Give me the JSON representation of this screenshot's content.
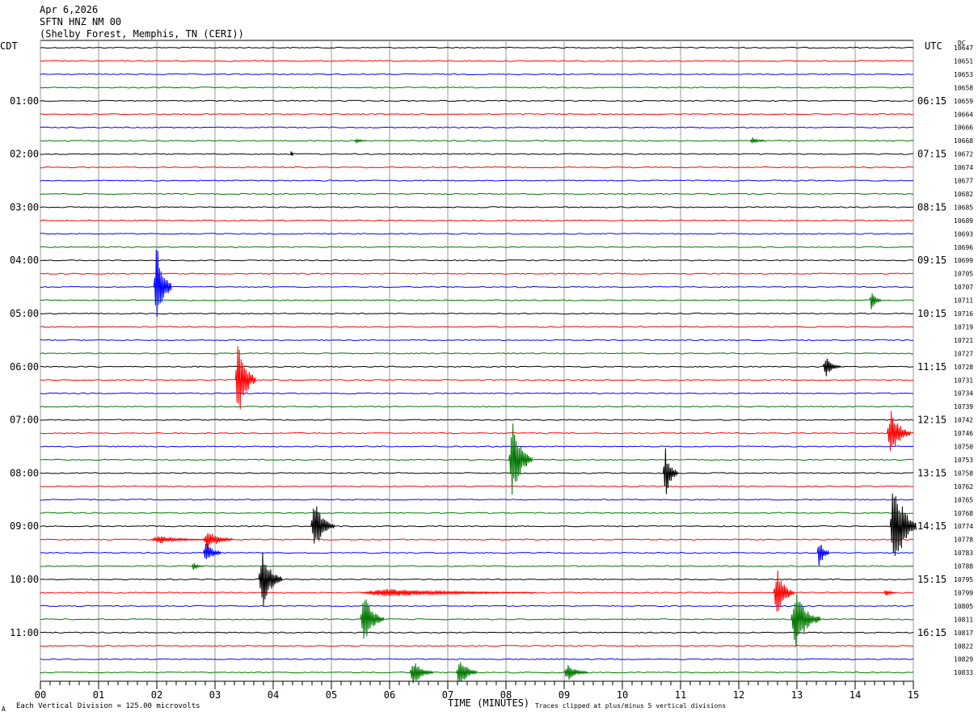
{
  "header": {
    "date": "Apr 6,2026",
    "station": "SFTN HNZ NM 00",
    "location": "(Shelby Forest, Memphis, TN (CERI))",
    "left_zone": "CDT",
    "right_zone": "UTC",
    "dc_label": "DC"
  },
  "footer": {
    "scale_note": "Each Vertical Division =  125.00 microvolts",
    "clip_note": "Traces clipped at plus/minus 5 vertical divisions",
    "corner_mark": "A"
  },
  "colors": {
    "trace_cycle": [
      "#000000",
      "#ff0000",
      "#0000ff",
      "#007700"
    ],
    "gridline": "#9a9a9a"
  },
  "chart_data": {
    "type": "line",
    "title": "SFTN HNZ NM 00",
    "xlabel": "TIME (MINUTES)",
    "xlim": [
      0,
      15
    ],
    "x_ticks": [
      "00",
      "01",
      "02",
      "03",
      "04",
      "05",
      "06",
      "07",
      "08",
      "09",
      "10",
      "11",
      "12",
      "13",
      "14",
      "15"
    ],
    "trace_minutes": 15,
    "trace_count": 48,
    "left_time_labels": [
      {
        "row": 4,
        "label": "01:00"
      },
      {
        "row": 8,
        "label": "02:00"
      },
      {
        "row": 12,
        "label": "03:00"
      },
      {
        "row": 16,
        "label": "04:00"
      },
      {
        "row": 20,
        "label": "05:00"
      },
      {
        "row": 24,
        "label": "06:00"
      },
      {
        "row": 28,
        "label": "07:00"
      },
      {
        "row": 32,
        "label": "08:00"
      },
      {
        "row": 36,
        "label": "09:00"
      },
      {
        "row": 40,
        "label": "10:00"
      },
      {
        "row": 44,
        "label": "11:00"
      }
    ],
    "right_time_labels": [
      {
        "row": 4,
        "label": "06:15"
      },
      {
        "row": 8,
        "label": "07:15"
      },
      {
        "row": 12,
        "label": "08:15"
      },
      {
        "row": 16,
        "label": "09:15"
      },
      {
        "row": 20,
        "label": "10:15"
      },
      {
        "row": 24,
        "label": "11:15"
      },
      {
        "row": 28,
        "label": "12:15"
      },
      {
        "row": 32,
        "label": "13:15"
      },
      {
        "row": 36,
        "label": "14:15"
      },
      {
        "row": 40,
        "label": "15:15"
      },
      {
        "row": 44,
        "label": "16:15"
      }
    ],
    "dc_values": [
      "10647",
      "10651",
      "10653",
      "10658",
      "10659",
      "10664",
      "10666",
      "10668",
      "10672",
      "10674",
      "10677",
      "10682",
      "10685",
      "10689",
      "10693",
      "10696",
      "10699",
      "10705",
      "10707",
      "10711",
      "10716",
      "10719",
      "10721",
      "10727",
      "10728",
      "10731",
      "10734",
      "10739",
      "10742",
      "10746",
      "10750",
      "10753",
      "10758",
      "10762",
      "10765",
      "10768",
      "10774",
      "10778",
      "10783",
      "10788",
      "10795",
      "10799",
      "10805",
      "10811",
      "10817",
      "10822",
      "10829",
      "10833"
    ],
    "events": [
      {
        "row": 7,
        "minute": 5.4,
        "amp": 0.25,
        "dur": 0.2
      },
      {
        "row": 7,
        "minute": 12.2,
        "amp": 0.35,
        "dur": 0.25
      },
      {
        "row": 8,
        "minute": 4.3,
        "amp": 0.5,
        "dur": 0.05
      },
      {
        "row": 18,
        "minute": 1.95,
        "amp": 4.5,
        "dur": 0.3
      },
      {
        "row": 19,
        "minute": 14.25,
        "amp": 1.0,
        "dur": 0.2
      },
      {
        "row": 25,
        "minute": 3.35,
        "amp": 4.0,
        "dur": 0.35
      },
      {
        "row": 24,
        "minute": 13.45,
        "amp": 1.0,
        "dur": 0.3
      },
      {
        "row": 29,
        "minute": 14.55,
        "amp": 2.5,
        "dur": 0.4
      },
      {
        "row": 31,
        "minute": 8.05,
        "amp": 4.0,
        "dur": 0.4
      },
      {
        "row": 32,
        "minute": 10.7,
        "amp": 2.5,
        "dur": 0.25
      },
      {
        "row": 36,
        "minute": 4.65,
        "amp": 2.5,
        "dur": 0.4
      },
      {
        "row": 36,
        "minute": 14.6,
        "amp": 5.0,
        "dur": 0.45
      },
      {
        "row": 37,
        "minute": 2.8,
        "amp": 1.0,
        "dur": 0.5
      },
      {
        "row": 37,
        "minute": 1.9,
        "amp": 0.4,
        "dur": 0.9
      },
      {
        "row": 38,
        "minute": 2.8,
        "amp": 1.2,
        "dur": 0.3
      },
      {
        "row": 38,
        "minute": 13.35,
        "amp": 1.6,
        "dur": 0.2
      },
      {
        "row": 39,
        "minute": 2.6,
        "amp": 0.4,
        "dur": 0.2
      },
      {
        "row": 40,
        "minute": 3.75,
        "amp": 3.0,
        "dur": 0.4
      },
      {
        "row": 41,
        "minute": 5.5,
        "amp": 0.4,
        "dur": 3.0
      },
      {
        "row": 41,
        "minute": 12.6,
        "amp": 2.5,
        "dur": 0.35
      },
      {
        "row": 41,
        "minute": 14.5,
        "amp": 0.4,
        "dur": 0.2
      },
      {
        "row": 43,
        "minute": 5.5,
        "amp": 2.5,
        "dur": 0.4
      },
      {
        "row": 43,
        "minute": 12.9,
        "amp": 3.0,
        "dur": 0.5
      },
      {
        "row": 47,
        "minute": 6.35,
        "amp": 1.2,
        "dur": 0.4
      },
      {
        "row": 47,
        "minute": 7.15,
        "amp": 1.6,
        "dur": 0.35
      },
      {
        "row": 47,
        "minute": 9.0,
        "amp": 0.8,
        "dur": 0.4
      }
    ]
  }
}
